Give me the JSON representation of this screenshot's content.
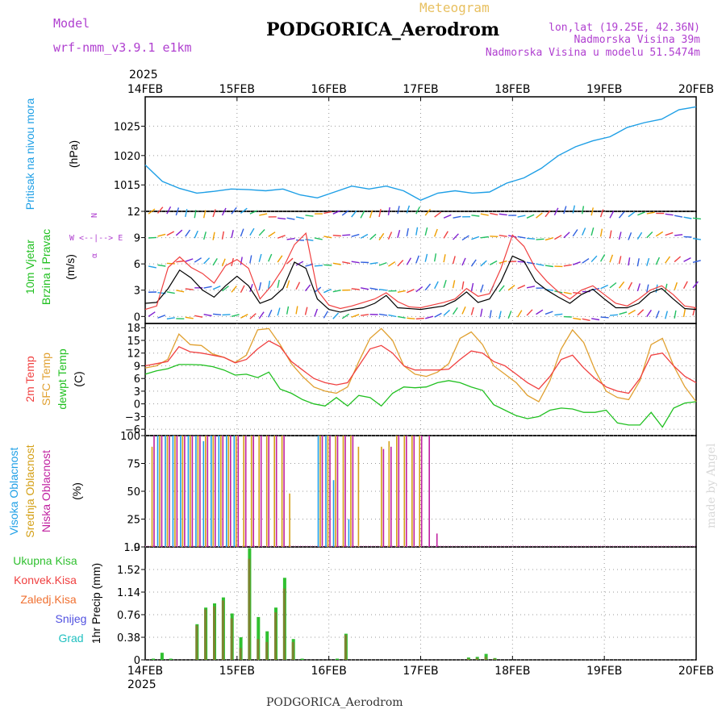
{
  "header": {
    "model_label": "Model",
    "model_name": "wrf-nmm_v3.9.1 e1km",
    "meteogram_label": "Meteogram",
    "station_title": "PODGORICA_Aerodrom",
    "coords": "lon,lat (19.25E, 42.36N)",
    "elevation": "Nadmorska Visina 39m",
    "model_elevation": "Nadmorska Visina u modelu 51.5474m",
    "year_top": "2025",
    "year_bottom": "2025",
    "footer_station": "PODGORICA_Aerodrom",
    "watermark": "made by Angel"
  },
  "colors": {
    "pressure": "#1e9fe6",
    "temp_2m": "#f04040",
    "temp_sfc": "#e0a030",
    "dewpoint": "#20c020",
    "cloud_high": "#20a0e6",
    "cloud_mid": "#d4a017",
    "cloud_low": "#c020a0",
    "precip_total": "#30c030",
    "precip_conv": "#f04040",
    "precip_frz": "#f07030",
    "precip_snow": "#5050e0",
    "precip_grad": "#20c0c0",
    "wind_speed": "#000000",
    "gust": "#f04040"
  },
  "chart_data": [
    {
      "type": "line",
      "panel": "pressure",
      "ylabel_left": "Pritisak na nivou mora",
      "unit": "(hPa)",
      "x": [
        "14FEB",
        "15FEB",
        "16FEB",
        "17FEB",
        "18FEB",
        "19FEB",
        "20FEB"
      ],
      "ylim": [
        1010.5,
        1030
      ],
      "yticks": [
        1015,
        1020,
        1025
      ],
      "grid": true,
      "series": [
        {
          "values_by_day": [
            1018.4,
            1015.6,
            1014.4,
            1013.6,
            1013.9,
            1014.3,
            1014.2,
            1014.0,
            1014.3,
            1013.3,
            1012.8,
            1013.8,
            1014.8,
            1014.3,
            1014.8,
            1014.0,
            1012.4,
            1013.6,
            1014.0,
            1013.6,
            1013.8,
            1015.3,
            1016.2,
            1017.8,
            1020.0,
            1021.5,
            1022.5,
            1023.2,
            1024.8,
            1025.6,
            1026.2,
            1027.8,
            1028.3
          ]
        }
      ]
    },
    {
      "type": "line",
      "panel": "wind",
      "ylabel_left": [
        "10m Vjetar",
        "Brzina i Pravac"
      ],
      "unit": "(m/s)",
      "compass": [
        "N",
        "S",
        "W",
        "E"
      ],
      "ylim": [
        -0.8,
        12
      ],
      "yticks": [
        0,
        3,
        6,
        9,
        12
      ],
      "grid": true,
      "series": [
        {
          "name": "speed",
          "values": [
            1.5,
            1.6,
            3.2,
            5.3,
            4.4,
            3.0,
            2.2,
            3.5,
            4.6,
            3.5,
            1.5,
            2.0,
            3.2,
            6.2,
            5.5,
            2.0,
            0.8,
            0.5,
            0.8,
            1.0,
            1.5,
            2.4,
            1.0,
            0.9,
            0.8,
            1.0,
            1.2,
            1.8,
            2.8,
            1.6,
            2.0,
            4.0,
            6.9,
            6.3,
            4.0,
            3.0,
            2.2,
            1.5,
            2.5,
            3.1,
            2.0,
            1.0,
            1.0,
            1.5,
            2.7,
            3.2,
            2.0,
            0.9,
            0.8
          ]
        },
        {
          "name": "gust",
          "values": [
            0.8,
            1.2,
            5.6,
            6.8,
            5.6,
            4.9,
            3.8,
            5.8,
            6.5,
            5.5,
            2.0,
            3.5,
            5.5,
            8.2,
            9.5,
            3.0,
            1.3,
            0.9,
            1.2,
            1.6,
            2.0,
            2.7,
            1.7,
            1.1,
            1.0,
            1.3,
            1.6,
            2.0,
            3.2,
            2.3,
            2.6,
            5.5,
            9.3,
            8.0,
            5.5,
            4.0,
            2.8,
            2.0,
            3.0,
            3.5,
            2.5,
            1.5,
            1.2,
            2.0,
            3.0,
            3.5,
            2.5,
            1.2,
            1.0
          ]
        }
      ]
    },
    {
      "type": "line",
      "panel": "temperature",
      "ylabel_left": [
        "2m Temp",
        "SFC Temp",
        "dewpt Temp"
      ],
      "unit": "(C)",
      "ylim": [
        -7.5,
        19
      ],
      "yticks": [
        -6,
        -3,
        0,
        3,
        6,
        9,
        12,
        15,
        18
      ],
      "grid": true,
      "series": [
        {
          "name": "2m Temp",
          "values": [
            9.0,
            9.5,
            10.0,
            13.5,
            12.3,
            12.0,
            11.5,
            11.0,
            9.7,
            10.5,
            13.0,
            14.9,
            13.5,
            10.0,
            8.0,
            6.0,
            5.0,
            4.5,
            5.0,
            9.0,
            13.0,
            13.8,
            12.0,
            9.0,
            8.0,
            8.0,
            8.0,
            8.2,
            10.5,
            12.5,
            12.0,
            10.0,
            9.0,
            7.0,
            5.0,
            3.5,
            6.5,
            10.5,
            11.5,
            8.5,
            6.0,
            4.0,
            3.0,
            2.5,
            6.0,
            11.5,
            12.0,
            9.0,
            6.5,
            5.0
          ]
        },
        {
          "name": "SFC Temp",
          "values": [
            8.5,
            9.0,
            10.5,
            16.5,
            14.0,
            13.8,
            11.8,
            11.0,
            9.8,
            11.5,
            17.5,
            17.8,
            14.0,
            9.5,
            6.5,
            4.0,
            3.0,
            2.5,
            4.0,
            10.0,
            15.5,
            17.8,
            15.0,
            9.0,
            7.0,
            6.5,
            7.5,
            9.5,
            15.5,
            17.0,
            14.0,
            9.0,
            7.0,
            5.0,
            2.0,
            0.5,
            5.5,
            13.0,
            17.5,
            14.5,
            8.0,
            3.0,
            1.5,
            1.0,
            5.5,
            14.0,
            15.5,
            9.0,
            4.0,
            0.5
          ]
        },
        {
          "name": "dewpt Temp",
          "values": [
            7.0,
            7.8,
            8.3,
            9.3,
            9.3,
            9.2,
            8.8,
            8.0,
            6.8,
            7.0,
            6.2,
            7.5,
            3.5,
            2.5,
            1.0,
            0.0,
            -0.5,
            1.5,
            -0.5,
            2.0,
            1.5,
            -0.5,
            2.5,
            4.0,
            3.8,
            4.0,
            5.0,
            5.5,
            5.0,
            4.0,
            3.2,
            -0.2,
            -1.5,
            -2.8,
            -3.5,
            -3.0,
            -1.5,
            -1.0,
            -1.2,
            -2.0,
            -2.0,
            -1.5,
            -4.5,
            -5.0,
            -5.0,
            -2.0,
            -5.5,
            -1.0,
            0.2,
            0.5
          ]
        }
      ]
    },
    {
      "type": "bar",
      "panel": "cloud",
      "ylabel_left": [
        "Visoka Oblacnost",
        "Srednja Oblacnost",
        "Niska Oblacnost"
      ],
      "unit": "(%)",
      "ylim": [
        0,
        100
      ],
      "yticks": [
        0,
        25,
        50,
        75,
        100
      ],
      "grid": true,
      "series": [
        {
          "name": "Visoka Oblacnost",
          "values": [
            0,
            100,
            100,
            100,
            100,
            100,
            100,
            95,
            100,
            100,
            100,
            100,
            0,
            0,
            0,
            0,
            0,
            0,
            0,
            0,
            0,
            0,
            100,
            100,
            60,
            0,
            25,
            0,
            0,
            0,
            0,
            0,
            0,
            0,
            0,
            0,
            0,
            0,
            0,
            0,
            0,
            0,
            0,
            0,
            0,
            0,
            0,
            0,
            0,
            0
          ]
        },
        {
          "name": "Srednja Oblacnost",
          "values": [
            90,
            100,
            100,
            100,
            100,
            100,
            100,
            100,
            100,
            100,
            100,
            100,
            100,
            100,
            100,
            100,
            100,
            100,
            48,
            0,
            0,
            0,
            100,
            100,
            100,
            100,
            100,
            90,
            0,
            0,
            90,
            95,
            100,
            100,
            100,
            100,
            0,
            0,
            0,
            0,
            0,
            0,
            0,
            0,
            0,
            0,
            0,
            0,
            0,
            0
          ]
        },
        {
          "name": "Niska Oblacnost",
          "values": [
            100,
            100,
            100,
            100,
            100,
            100,
            100,
            100,
            100,
            100,
            100,
            100,
            100,
            100,
            100,
            100,
            100,
            100,
            0,
            0,
            0,
            0,
            100,
            100,
            100,
            100,
            100,
            0,
            0,
            0,
            88,
            90,
            100,
            100,
            100,
            100,
            100,
            12,
            0,
            0,
            0,
            0,
            0,
            0,
            0,
            0,
            0,
            0,
            0,
            0
          ]
        }
      ]
    },
    {
      "type": "bar",
      "panel": "precip",
      "ylabel_left": [
        "Ukupna Kisa",
        "Konvek.Kisa",
        "Zaledj.Kisa",
        "Snijeg",
        "Grad"
      ],
      "unit": "1hr Precip (mm)",
      "ylim": [
        0,
        1.9
      ],
      "yticks": [
        0,
        0.38,
        0.76,
        1.14,
        1.52,
        1.9
      ],
      "grid": true,
      "series": [
        {
          "name": "Ukupna Kisa",
          "values": [
            0.02,
            0.12,
            0.02,
            0,
            0,
            0.6,
            0.88,
            0.95,
            1.05,
            0.78,
            0.38,
            1.88,
            0.72,
            0.48,
            0.88,
            1.38,
            0.35,
            0.02,
            0,
            0,
            0,
            0.02,
            0.44,
            0,
            0,
            0,
            0,
            0,
            0,
            0,
            0,
            0,
            0,
            0,
            0,
            0,
            0.04,
            0.05,
            0.1,
            0.03
          ]
        },
        {
          "name": "Konvek.Kisa",
          "values": [
            0,
            0,
            0,
            0,
            0,
            0.58,
            0.85,
            0.9,
            1.0,
            0.7,
            0.2,
            1.7,
            0.35,
            0.3,
            0.8,
            1.2,
            0.3,
            0,
            0,
            0,
            0,
            0,
            0.42,
            0,
            0,
            0,
            0,
            0,
            0,
            0,
            0,
            0,
            0,
            0,
            0,
            0,
            0.02,
            0.03,
            0.05,
            0.02
          ]
        }
      ]
    }
  ],
  "x_axis": {
    "labels": [
      "14FEB",
      "15FEB",
      "16FEB",
      "17FEB",
      "18FEB",
      "19FEB",
      "20FEB"
    ]
  }
}
